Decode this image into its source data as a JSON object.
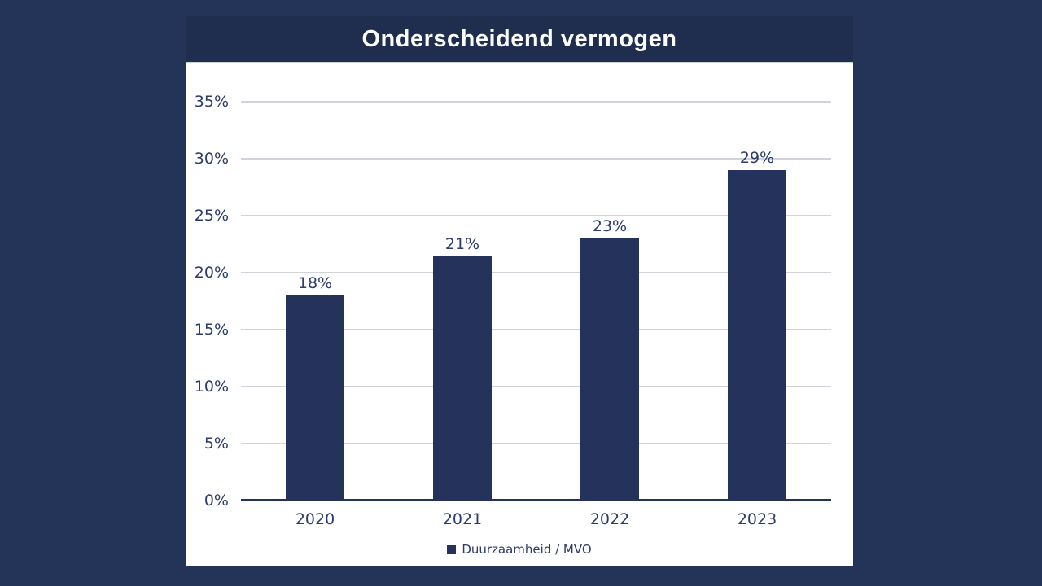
{
  "title": "Onderscheidend vermogen",
  "legend": {
    "label": "Duurzaamheid / MVO"
  },
  "chart_data": {
    "type": "bar",
    "title": "Onderscheidend vermogen",
    "categories": [
      "2020",
      "2021",
      "2022",
      "2023"
    ],
    "series": [
      {
        "name": "Duurzaamheid / MVO",
        "values": [
          18,
          21.4,
          23,
          29
        ],
        "value_labels": [
          "18%",
          "21%",
          "23%",
          "29%"
        ]
      }
    ],
    "xlabel": "",
    "ylabel": "",
    "ylim": [
      0,
      35
    ],
    "ytick_step": 5,
    "ytick_suffix": "%",
    "grid": true,
    "legend_position": "bottom"
  },
  "colors": {
    "background": "#243459",
    "title_band": "#1f2d4f",
    "chart_background": "#ffffff",
    "bar": "#25335c",
    "text": "#2d3c69",
    "title_text": "#ffffff",
    "gridline": "#d0d3d9",
    "axis_line": "#243459"
  }
}
